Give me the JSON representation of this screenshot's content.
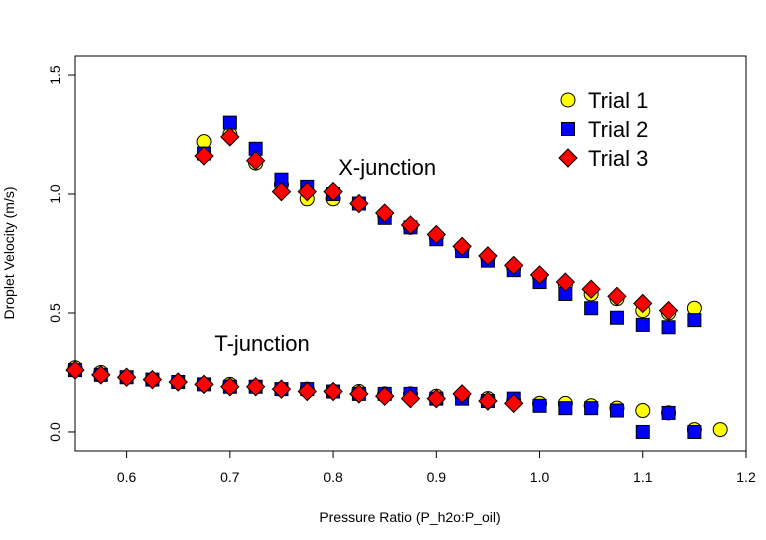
{
  "chart_data": {
    "type": "scatter",
    "title": "",
    "xlabel": "Pressure Ratio (P_h2o:P_oil)",
    "ylabel": "Droplet Velocity (m/s)",
    "xlim": [
      0.55,
      1.2
    ],
    "ylim": [
      -0.08,
      1.58
    ],
    "x_ticks": [
      "0.6",
      "0.7",
      "0.8",
      "0.9",
      "1.0",
      "1.1",
      "1.2"
    ],
    "y_ticks": [
      "0.0",
      "0.5",
      "1.0",
      "1.5"
    ],
    "grid": false,
    "legend_position": "top-right",
    "annotations": [
      {
        "text": "X-junction",
        "x": 0.805,
        "y": 1.08
      },
      {
        "text": "T-junction",
        "x": 0.685,
        "y": 0.34
      }
    ],
    "series": [
      {
        "name": "Trial 1",
        "marker": "circle",
        "color": "#ffff00",
        "points": [
          [
            0.675,
            1.22
          ],
          [
            0.7,
            1.25
          ],
          [
            0.725,
            1.13
          ],
          [
            0.75,
            1.04
          ],
          [
            0.775,
            0.98
          ],
          [
            0.8,
            0.98
          ],
          [
            0.825,
            0.96
          ],
          [
            0.85,
            0.91
          ],
          [
            0.875,
            0.86
          ],
          [
            0.9,
            0.82
          ],
          [
            0.925,
            0.77
          ],
          [
            0.95,
            0.73
          ],
          [
            0.975,
            0.69
          ],
          [
            1.0,
            0.65
          ],
          [
            1.025,
            0.62
          ],
          [
            1.05,
            0.58
          ],
          [
            1.075,
            0.56
          ],
          [
            1.1,
            0.51
          ],
          [
            1.125,
            0.5
          ],
          [
            1.15,
            0.52
          ],
          [
            0.55,
            0.27
          ],
          [
            0.575,
            0.25
          ],
          [
            0.6,
            0.23
          ],
          [
            0.625,
            0.22
          ],
          [
            0.65,
            0.21
          ],
          [
            0.675,
            0.2
          ],
          [
            0.7,
            0.2
          ],
          [
            0.725,
            0.19
          ],
          [
            0.75,
            0.18
          ],
          [
            0.775,
            0.18
          ],
          [
            0.8,
            0.17
          ],
          [
            0.825,
            0.17
          ],
          [
            0.85,
            0.16
          ],
          [
            0.875,
            0.16
          ],
          [
            0.9,
            0.15
          ],
          [
            0.925,
            0.15
          ],
          [
            0.95,
            0.14
          ],
          [
            0.975,
            0.13
          ],
          [
            1.0,
            0.12
          ],
          [
            1.025,
            0.12
          ],
          [
            1.05,
            0.11
          ],
          [
            1.075,
            0.1
          ],
          [
            1.1,
            0.09
          ],
          [
            1.125,
            0.08
          ],
          [
            1.15,
            0.01
          ],
          [
            1.175,
            0.01
          ]
        ]
      },
      {
        "name": "Trial 2",
        "marker": "square",
        "color": "#0000ff",
        "points": [
          [
            0.675,
            1.17
          ],
          [
            0.7,
            1.3
          ],
          [
            0.725,
            1.19
          ],
          [
            0.75,
            1.06
          ],
          [
            0.775,
            1.03
          ],
          [
            0.8,
            1.0
          ],
          [
            0.825,
            0.96
          ],
          [
            0.85,
            0.9
          ],
          [
            0.875,
            0.86
          ],
          [
            0.9,
            0.81
          ],
          [
            0.925,
            0.76
          ],
          [
            0.95,
            0.72
          ],
          [
            0.975,
            0.68
          ],
          [
            1.0,
            0.63
          ],
          [
            1.025,
            0.58
          ],
          [
            1.05,
            0.52
          ],
          [
            1.075,
            0.48
          ],
          [
            1.1,
            0.45
          ],
          [
            1.125,
            0.44
          ],
          [
            1.15,
            0.47
          ],
          [
            0.55,
            0.26
          ],
          [
            0.575,
            0.24
          ],
          [
            0.6,
            0.23
          ],
          [
            0.625,
            0.22
          ],
          [
            0.65,
            0.21
          ],
          [
            0.675,
            0.2
          ],
          [
            0.7,
            0.19
          ],
          [
            0.725,
            0.19
          ],
          [
            0.75,
            0.18
          ],
          [
            0.775,
            0.18
          ],
          [
            0.8,
            0.17
          ],
          [
            0.825,
            0.16
          ],
          [
            0.85,
            0.16
          ],
          [
            0.875,
            0.16
          ],
          [
            0.9,
            0.14
          ],
          [
            0.925,
            0.14
          ],
          [
            0.95,
            0.13
          ],
          [
            0.975,
            0.14
          ],
          [
            1.0,
            0.11
          ],
          [
            1.025,
            0.1
          ],
          [
            1.05,
            0.1
          ],
          [
            1.075,
            0.09
          ],
          [
            1.1,
            0.0
          ],
          [
            1.125,
            0.08
          ],
          [
            1.15,
            0.0
          ]
        ]
      },
      {
        "name": "Trial 3",
        "marker": "diamond",
        "color": "#ff0000",
        "points": [
          [
            0.675,
            1.16
          ],
          [
            0.7,
            1.24
          ],
          [
            0.725,
            1.14
          ],
          [
            0.75,
            1.01
          ],
          [
            0.775,
            1.01
          ],
          [
            0.8,
            1.01
          ],
          [
            0.825,
            0.96
          ],
          [
            0.85,
            0.92
          ],
          [
            0.875,
            0.87
          ],
          [
            0.9,
            0.83
          ],
          [
            0.925,
            0.78
          ],
          [
            0.95,
            0.74
          ],
          [
            0.975,
            0.7
          ],
          [
            1.0,
            0.66
          ],
          [
            1.025,
            0.63
          ],
          [
            1.05,
            0.6
          ],
          [
            1.075,
            0.57
          ],
          [
            1.1,
            0.54
          ],
          [
            1.125,
            0.51
          ],
          [
            0.55,
            0.26
          ],
          [
            0.575,
            0.24
          ],
          [
            0.6,
            0.23
          ],
          [
            0.625,
            0.22
          ],
          [
            0.65,
            0.21
          ],
          [
            0.675,
            0.2
          ],
          [
            0.7,
            0.19
          ],
          [
            0.725,
            0.19
          ],
          [
            0.75,
            0.18
          ],
          [
            0.775,
            0.17
          ],
          [
            0.8,
            0.17
          ],
          [
            0.825,
            0.16
          ],
          [
            0.85,
            0.15
          ],
          [
            0.875,
            0.14
          ],
          [
            0.9,
            0.14
          ],
          [
            0.925,
            0.16
          ],
          [
            0.95,
            0.13
          ],
          [
            0.975,
            0.12
          ]
        ]
      }
    ]
  }
}
